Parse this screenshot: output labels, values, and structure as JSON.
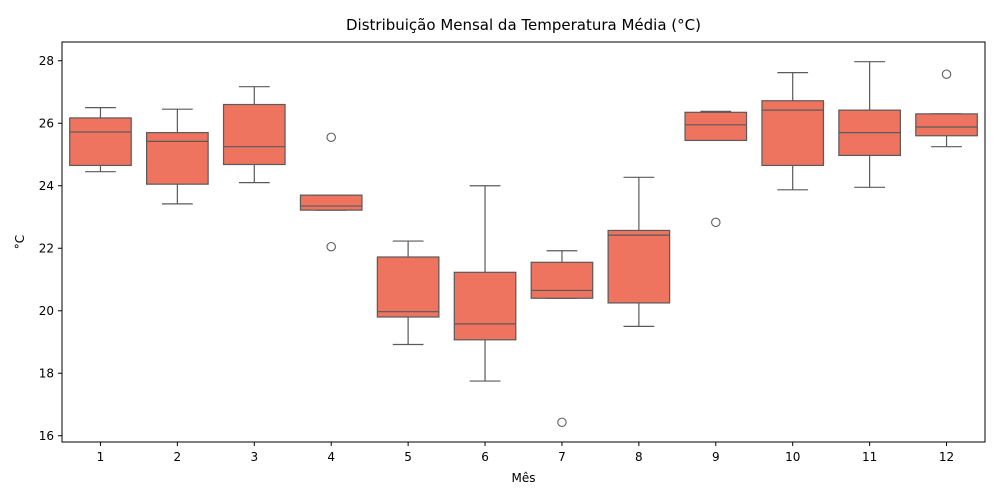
{
  "chart_data": {
    "type": "box",
    "title": "Distribuição Mensal da Temperatura Média (°C)",
    "xlabel": "Mês",
    "ylabel": "°C",
    "ylim": [
      15.8,
      28.6
    ],
    "yticks": [
      16,
      18,
      20,
      22,
      24,
      26,
      28
    ],
    "categories": [
      "1",
      "2",
      "3",
      "4",
      "5",
      "6",
      "7",
      "8",
      "9",
      "10",
      "11",
      "12"
    ],
    "box_color": "#EE7460",
    "line_color": "#5a5a5a",
    "grid": false,
    "boxes": [
      {
        "category": "1",
        "whisker_low": 24.45,
        "q1": 24.65,
        "median": 25.72,
        "q3": 26.17,
        "whisker_high": 26.5,
        "outliers": []
      },
      {
        "category": "2",
        "whisker_low": 23.42,
        "q1": 24.05,
        "median": 25.42,
        "q3": 25.7,
        "whisker_high": 26.45,
        "outliers": []
      },
      {
        "category": "3",
        "whisker_low": 24.1,
        "q1": 24.68,
        "median": 25.25,
        "q3": 26.6,
        "whisker_high": 27.17,
        "outliers": []
      },
      {
        "category": "4",
        "whisker_low": 23.22,
        "q1": 23.22,
        "median": 23.35,
        "q3": 23.7,
        "whisker_high": 23.7,
        "outliers": [
          25.55,
          22.05
        ]
      },
      {
        "category": "5",
        "whisker_low": 18.92,
        "q1": 19.8,
        "median": 19.97,
        "q3": 21.72,
        "whisker_high": 22.23,
        "outliers": []
      },
      {
        "category": "6",
        "whisker_low": 17.75,
        "q1": 19.07,
        "median": 19.58,
        "q3": 21.23,
        "whisker_high": 24.0,
        "outliers": []
      },
      {
        "category": "7",
        "whisker_low": 20.4,
        "q1": 20.4,
        "median": 20.65,
        "q3": 21.55,
        "whisker_high": 21.92,
        "outliers": [
          16.43
        ]
      },
      {
        "category": "8",
        "whisker_low": 19.5,
        "q1": 20.25,
        "median": 22.42,
        "q3": 22.57,
        "whisker_high": 24.27,
        "outliers": []
      },
      {
        "category": "9",
        "whisker_low": 25.45,
        "q1": 25.45,
        "median": 25.95,
        "q3": 26.35,
        "whisker_high": 26.38,
        "outliers": [
          22.83
        ]
      },
      {
        "category": "10",
        "whisker_low": 23.87,
        "q1": 24.65,
        "median": 26.42,
        "q3": 26.72,
        "whisker_high": 27.62,
        "outliers": []
      },
      {
        "category": "11",
        "whisker_low": 23.95,
        "q1": 24.97,
        "median": 25.7,
        "q3": 26.42,
        "whisker_high": 27.97,
        "outliers": []
      },
      {
        "category": "12",
        "whisker_low": 25.25,
        "q1": 25.6,
        "median": 25.88,
        "q3": 26.3,
        "whisker_high": 26.3,
        "outliers": [
          27.57
        ]
      }
    ]
  }
}
